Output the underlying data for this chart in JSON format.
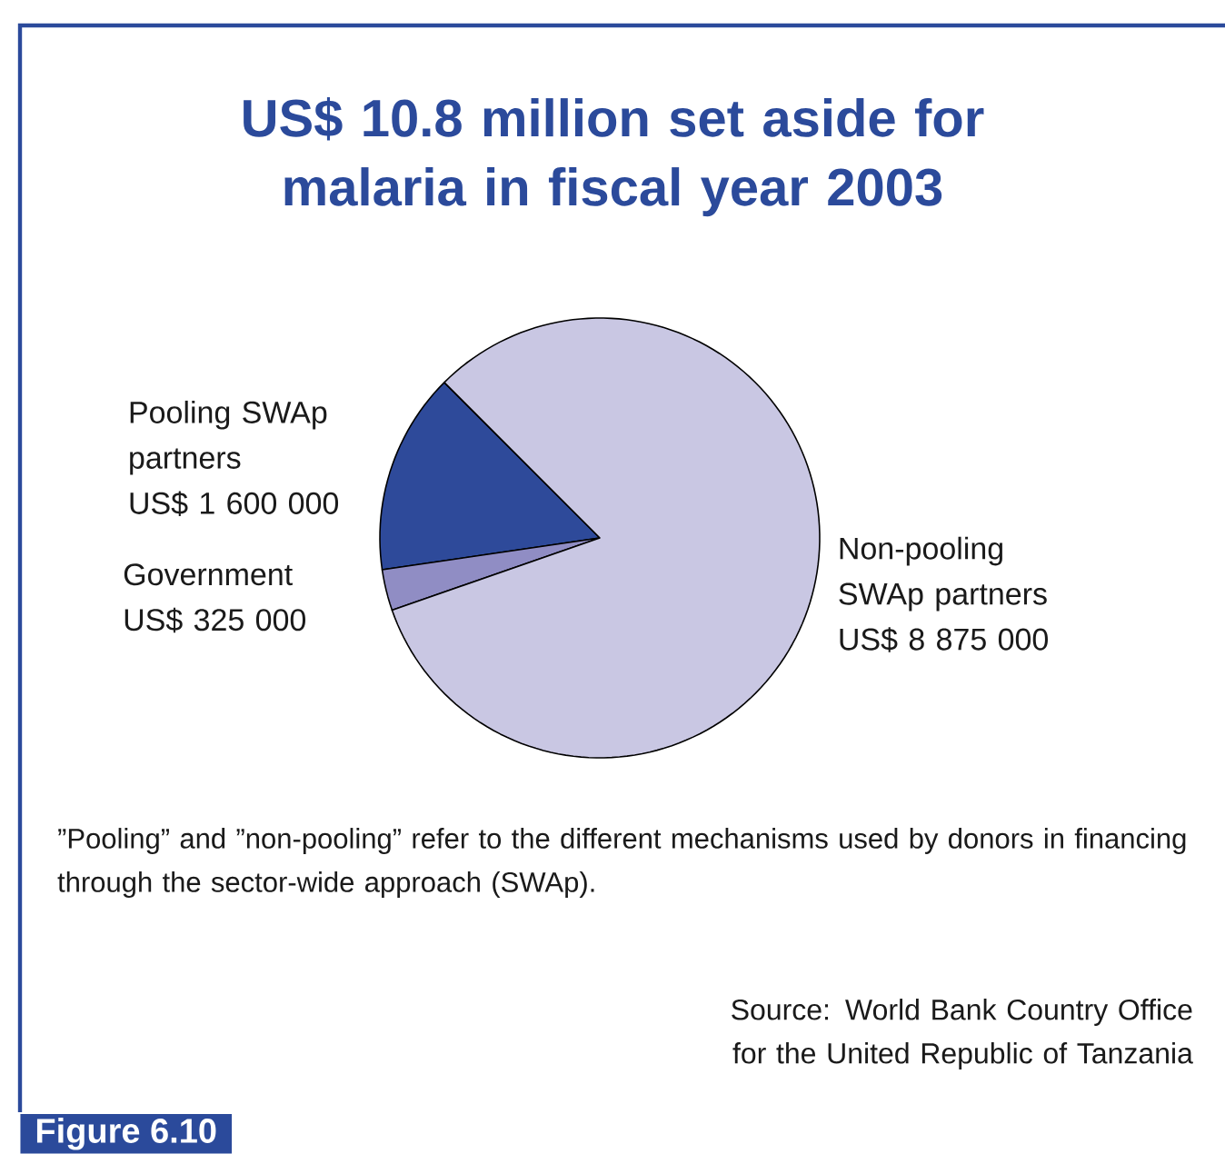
{
  "chart_data": {
    "type": "pie",
    "title": "US$ 10.8 million set aside for malaria in fiscal year 2003",
    "categories": [
      "Pooling SWAp partners",
      "Government",
      "Non-pooling SWAp partners"
    ],
    "values": [
      1600000,
      325000,
      8875000
    ],
    "value_labels": [
      "US$ 1 600 000",
      "US$ 325 000",
      "US$ 8 875 000"
    ],
    "colors": [
      "#2e4a9a",
      "#908dc4",
      "#c9c7e3"
    ],
    "annotations": [
      "”Pooling” and ”non-pooling” refer to the different mechanisms used by donors in financing through the sector-wide approach (SWAp).",
      "Source: World Bank Country Office for the United Republic of Tanzania",
      "Figure 6.10"
    ]
  }
}
